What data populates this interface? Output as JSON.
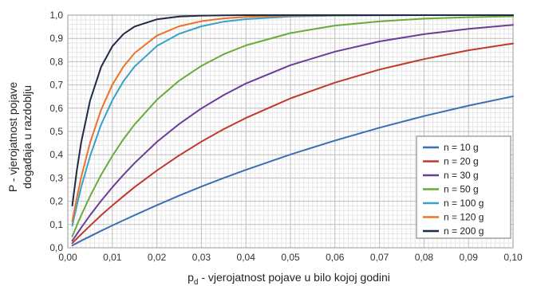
{
  "chart_data": {
    "type": "line",
    "title": "",
    "xlabel_main": "p",
    "xlabel_sub": "d",
    "xlabel_rest": " - vjerojatnost pojave u bilo kojoj godini",
    "ylabel_lines": [
      "P - vjerojatnost pojave",
      "događaja u razdoblju"
    ],
    "xlim": [
      0,
      0.1
    ],
    "ylim": [
      0,
      1
    ],
    "xticks": [
      0.0,
      0.01,
      0.02,
      0.03,
      0.04,
      0.05,
      0.06,
      0.07,
      0.08,
      0.09,
      0.1
    ],
    "xtick_labels": [
      "0,00",
      "0,01",
      "0,02",
      "0,03",
      "0,04",
      "0,05",
      "0,06",
      "0,07",
      "0,08",
      "0,09",
      "0,10"
    ],
    "yticks": [
      0.0,
      0.1,
      0.2,
      0.3,
      0.4,
      0.5,
      0.6,
      0.7,
      0.8,
      0.9,
      1.0
    ],
    "ytick_labels": [
      "0,0",
      "0,1",
      "0,2",
      "0,3",
      "0,4",
      "0,5",
      "0,6",
      "0,7",
      "0,8",
      "0,9",
      "1,0"
    ],
    "grid": true,
    "legend_position": "bottom-right",
    "x": [
      0.001,
      0.002,
      0.003,
      0.005,
      0.0075,
      0.01,
      0.0125,
      0.015,
      0.02,
      0.025,
      0.03,
      0.035,
      0.04,
      0.05,
      0.06,
      0.07,
      0.08,
      0.09,
      0.1
    ],
    "series": [
      {
        "name": "n = 10 g",
        "color": "#3a6fb0",
        "values": [
          0.01,
          0.02,
          0.03,
          0.049,
          0.073,
          0.096,
          0.118,
          0.14,
          0.183,
          0.224,
          0.263,
          0.3,
          0.335,
          0.401,
          0.461,
          0.516,
          0.566,
          0.611,
          0.651
        ]
      },
      {
        "name": "n = 20 g",
        "color": "#c0392b",
        "values": [
          0.02,
          0.039,
          0.058,
          0.095,
          0.14,
          0.182,
          0.222,
          0.261,
          0.332,
          0.397,
          0.456,
          0.51,
          0.558,
          0.642,
          0.71,
          0.766,
          0.811,
          0.849,
          0.878
        ]
      },
      {
        "name": "n = 30 g",
        "color": "#6a3d9a",
        "values": [
          0.03,
          0.058,
          0.086,
          0.14,
          0.202,
          0.26,
          0.314,
          0.364,
          0.455,
          0.532,
          0.599,
          0.656,
          0.706,
          0.785,
          0.843,
          0.887,
          0.918,
          0.941,
          0.958
        ]
      },
      {
        "name": "n = 50 g",
        "color": "#6aaa3a",
        "values": [
          0.049,
          0.095,
          0.139,
          0.222,
          0.314,
          0.395,
          0.467,
          0.53,
          0.636,
          0.718,
          0.782,
          0.832,
          0.87,
          0.923,
          0.955,
          0.973,
          0.985,
          0.991,
          0.995
        ]
      },
      {
        "name": "n = 100 g",
        "color": "#3aa0c8",
        "values": [
          0.095,
          0.181,
          0.26,
          0.394,
          0.53,
          0.634,
          0.716,
          0.779,
          0.867,
          0.92,
          0.952,
          0.972,
          0.983,
          0.994,
          0.998,
          0.999,
          1.0,
          1.0,
          1.0
        ]
      },
      {
        "name": "n = 120 g",
        "color": "#e8742a",
        "values": [
          0.113,
          0.213,
          0.302,
          0.452,
          0.594,
          0.701,
          0.779,
          0.837,
          0.912,
          0.952,
          0.974,
          0.986,
          0.992,
          0.998,
          0.999,
          1.0,
          1.0,
          1.0,
          1.0
        ]
      },
      {
        "name": "n = 200 g",
        "color": "#1f2a44",
        "values": [
          0.181,
          0.33,
          0.452,
          0.633,
          0.778,
          0.866,
          0.919,
          0.951,
          0.982,
          0.994,
          0.998,
          0.999,
          1.0,
          1.0,
          1.0,
          1.0,
          1.0,
          1.0,
          1.0
        ]
      }
    ]
  }
}
